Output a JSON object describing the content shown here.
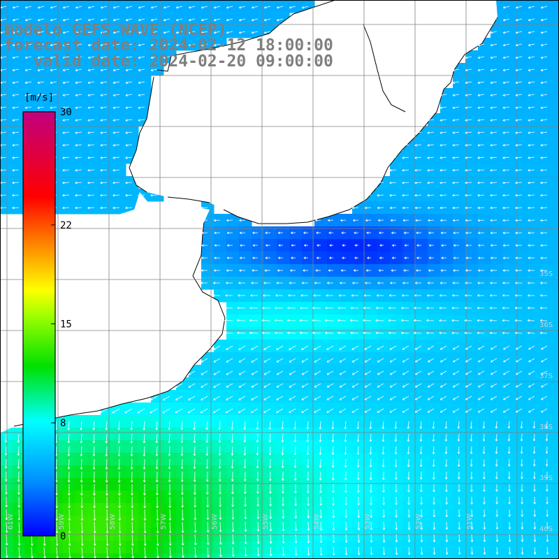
{
  "title": {
    "model": "modelo GEFS-WAVE (NCEP)",
    "forecast_date": "forecast date: 2024-02-12 18:00:00",
    "valid_date": "valid date: 2024-02-20 09:00:00"
  },
  "colorbar": {
    "unit": "[m/s]",
    "ticks": [
      {
        "label": "30",
        "value": 30
      },
      {
        "label": "22",
        "value": 22
      },
      {
        "label": "15",
        "value": 15
      },
      {
        "label": "8",
        "value": 8
      },
      {
        "label": "0",
        "value": 0
      }
    ],
    "min": 0,
    "max": 30
  },
  "map": {
    "lon_labels": [
      "61W",
      "59W",
      "58W",
      "57W",
      "56W",
      "55W",
      "54W",
      "53W",
      "52W",
      "51W"
    ],
    "lat_labels": [
      "35S",
      "36S",
      "37S",
      "38S",
      "39S",
      "40S"
    ],
    "land_color": "#ffffff",
    "grid_color": "#808080"
  }
}
